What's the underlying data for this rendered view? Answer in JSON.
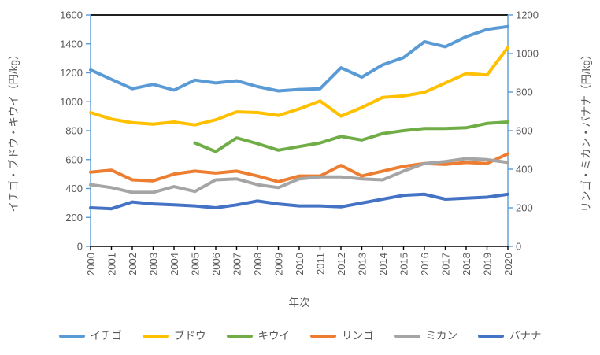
{
  "chart_data": {
    "type": "line",
    "title": "",
    "xlabel": "年次",
    "x_categories": [
      "2000",
      "2001",
      "2002",
      "2003",
      "2004",
      "2005",
      "2006",
      "2007",
      "2008",
      "2009",
      "2010",
      "2011",
      "2012",
      "2013",
      "2014",
      "2015",
      "2016",
      "2017",
      "2018",
      "2019",
      "2020"
    ],
    "axes": {
      "left": {
        "label": "イチゴ・ブドウ・キウイ（円/kg）",
        "min": 0,
        "max": 1600,
        "tick_step": 200,
        "ticks": [
          "0",
          "200",
          "400",
          "600",
          "800",
          "1000",
          "1200",
          "1400",
          "1600"
        ]
      },
      "right": {
        "label": "リンゴ・ミカン・バナナ（円/kg）",
        "min": 0,
        "max": 1200,
        "tick_step": 200,
        "ticks": [
          "0",
          "200",
          "400",
          "600",
          "800",
          "1000",
          "1200"
        ]
      }
    },
    "grid": false,
    "legend_position": "bottom",
    "series": [
      {
        "name": "イチゴ",
        "slug": "ichigo-strawberry",
        "axis": "left",
        "color": "#5B9BD5",
        "values": [
          1220,
          1155,
          1090,
          1120,
          1080,
          1150,
          1130,
          1145,
          1105,
          1075,
          1085,
          1090,
          1235,
          1170,
          1255,
          1305,
          1415,
          1380,
          1450,
          1500,
          1520
        ]
      },
      {
        "name": "ブドウ",
        "slug": "budou-grape",
        "axis": "left",
        "color": "#FFC000",
        "values": [
          925,
          880,
          855,
          845,
          860,
          840,
          875,
          930,
          925,
          905,
          950,
          1005,
          900,
          960,
          1030,
          1040,
          1065,
          1130,
          1195,
          1185,
          1375
        ]
      },
      {
        "name": "キウイ",
        "slug": "kiwi",
        "axis": "left",
        "color": "#70AD47",
        "values": [
          null,
          null,
          null,
          null,
          null,
          715,
          655,
          750,
          710,
          665,
          690,
          715,
          760,
          735,
          780,
          800,
          815,
          815,
          820,
          850,
          860
        ]
      },
      {
        "name": "リンゴ",
        "slug": "ringo-apple",
        "axis": "right",
        "color": "#ED7D31",
        "values": [
          385,
          395,
          345,
          340,
          375,
          390,
          380,
          390,
          365,
          335,
          365,
          365,
          420,
          365,
          390,
          415,
          430,
          425,
          435,
          430,
          480
        ]
      },
      {
        "name": "ミカン",
        "slug": "mikan-mandarin",
        "axis": "right",
        "color": "#A5A5A5",
        "values": [
          320,
          305,
          280,
          280,
          310,
          285,
          345,
          350,
          320,
          305,
          350,
          360,
          360,
          350,
          345,
          390,
          430,
          440,
          455,
          450,
          435
        ]
      },
      {
        "name": "バナナ",
        "slug": "banana",
        "axis": "right",
        "color": "#4472C4",
        "values": [
          200,
          195,
          230,
          220,
          215,
          210,
          200,
          215,
          235,
          220,
          210,
          210,
          205,
          225,
          245,
          265,
          270,
          245,
          250,
          255,
          270
        ]
      }
    ],
    "style": {
      "axis_line_color": "#5B9BD5",
      "x_axis_color": "#000000",
      "plot_border_color": "#000000",
      "text_color": "#595959"
    }
  }
}
